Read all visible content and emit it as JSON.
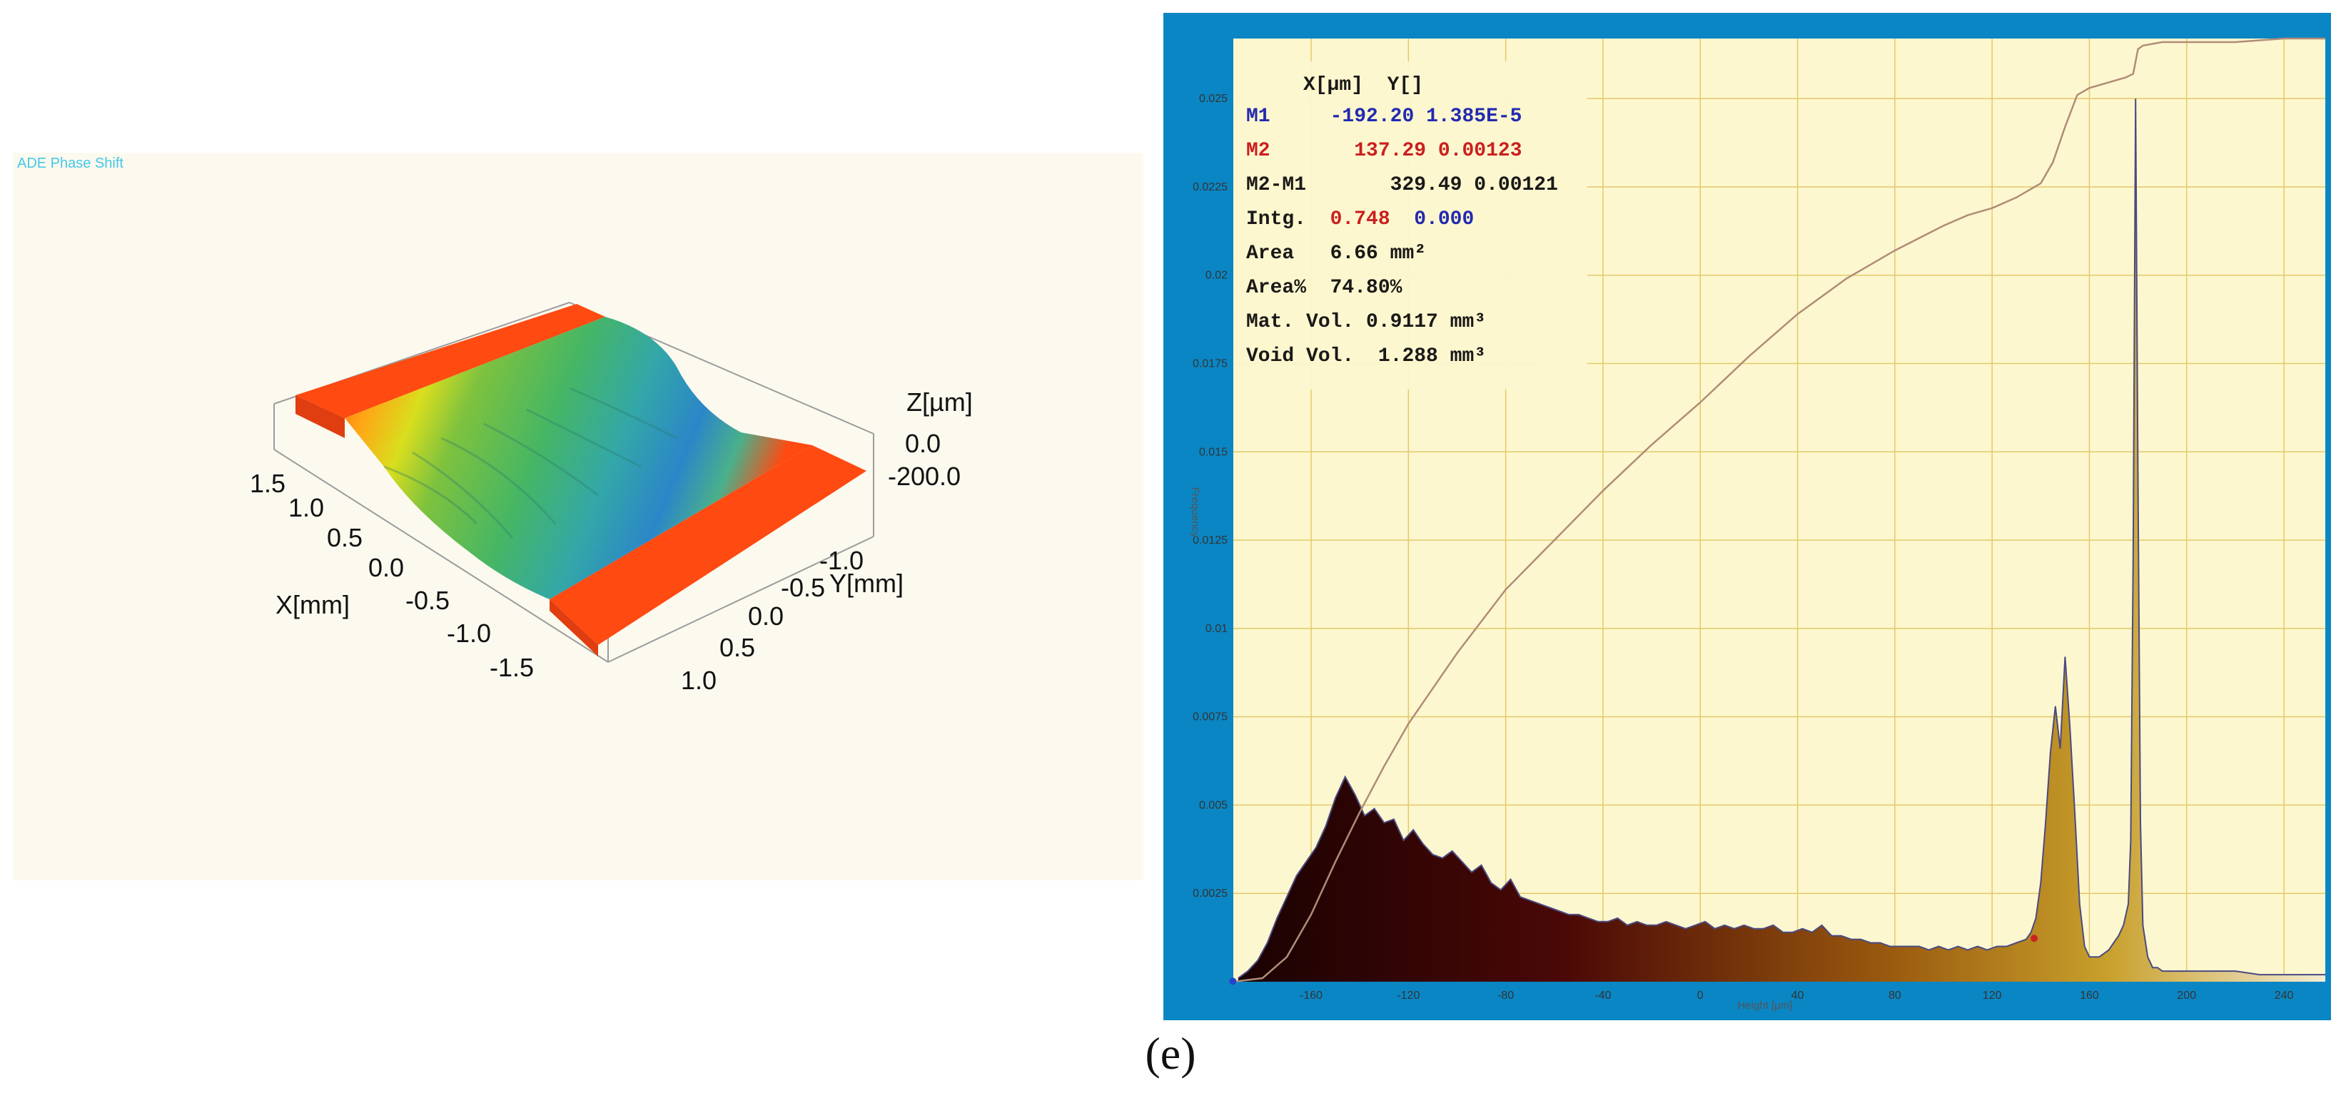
{
  "left_panel": {
    "title": "ADE Phase Shift",
    "axis_z_title": "Z[µm]",
    "axis_z_ticks": [
      "0.0",
      "-200.0"
    ],
    "axis_x_title": "X[mm]",
    "axis_x_ticks": [
      "1.5",
      "1.0",
      "0.5",
      "0.0",
      "-0.5",
      "-1.0",
      "-1.5"
    ],
    "axis_y_title": "Y[mm]",
    "axis_y_ticks": [
      "-1.0",
      "-0.5",
      "0.0",
      "0.5",
      "1.0"
    ],
    "colors": {
      "plateau": "#ff4a12",
      "groove_mid": "#5ab94a",
      "groove_deep": "#2b86c8",
      "background": "#fcf9ef"
    }
  },
  "measurements": {
    "header_x": "X[µm]",
    "header_y": "Y[]",
    "m1": {
      "label": "M1",
      "x": "-192.20",
      "y": "1.385E-5"
    },
    "m2": {
      "label": "M2",
      "x": "137.29",
      "y": "0.00123"
    },
    "m2_m1": {
      "label": "M2-M1",
      "x": "329.49",
      "y": "0.00121"
    },
    "intg": {
      "label": "Intg.",
      "v1": "0.748",
      "v2": "0.000"
    },
    "area": {
      "label": "Area",
      "value": "6.66 mm²"
    },
    "area_pct": {
      "label": "Area%",
      "value": "74.80%"
    },
    "mat_vol": {
      "label": "Mat. Vol.",
      "value": "0.9117 mm³"
    },
    "void_vol": {
      "label": "Void Vol.",
      "value": "1.288 mm³"
    }
  },
  "caption": "(e)",
  "chart_data": {
    "type": "area",
    "xlabel": "Height [µm]",
    "ylabel": "Frequency",
    "xlim": [
      -192,
      257
    ],
    "ylim": [
      0,
      0.0267
    ],
    "x_ticks": [
      -160,
      -120,
      -80,
      -40,
      0,
      40,
      80,
      120,
      160,
      200,
      240
    ],
    "y_ticks": [
      "0.0025",
      "0.005",
      "0.0075",
      "0.01",
      "0.0125",
      "0.015",
      "0.0175",
      "0.02",
      "0.0225",
      "0.025"
    ],
    "grid": true,
    "colors": {
      "plot_bg": "#fdf7cf",
      "frame": "#0a86c4",
      "grid": "#e2c96a",
      "outline": "#4a4a82",
      "cumulative": "#b08c78",
      "marker_m1": "#2244cc",
      "marker_m2": "#cc2222"
    },
    "series": [
      {
        "kind": "histogram",
        "x": [
          -190,
          -186,
          -182,
          -178,
          -174,
          -170,
          -166,
          -162,
          -158,
          -154,
          -150,
          -146,
          -142,
          -138,
          -134,
          -130,
          -126,
          -122,
          -118,
          -114,
          -110,
          -106,
          -102,
          -98,
          -94,
          -90,
          -86,
          -82,
          -78,
          -74,
          -70,
          -66,
          -62,
          -58,
          -54,
          -50,
          -46,
          -42,
          -38,
          -34,
          -30,
          -26,
          -22,
          -18,
          -14,
          -10,
          -6,
          -2,
          2,
          6,
          10,
          14,
          18,
          22,
          26,
          30,
          34,
          38,
          42,
          46,
          50,
          54,
          58,
          62,
          66,
          70,
          74,
          78,
          82,
          86,
          90,
          94,
          98,
          102,
          106,
          110,
          114,
          118,
          122,
          126,
          130,
          134,
          136,
          138,
          140,
          142,
          144,
          146,
          148,
          150,
          152,
          154,
          156,
          158,
          160,
          162,
          164,
          166,
          168,
          170,
          172,
          174,
          176,
          177,
          178,
          179,
          180,
          181,
          182,
          184,
          186,
          188,
          190,
          194,
          200,
          210,
          220,
          230,
          240,
          250,
          257
        ],
        "y": [
          0.0001,
          0.0003,
          0.0006,
          0.0011,
          0.0018,
          0.0024,
          0.003,
          0.0034,
          0.0038,
          0.0044,
          0.0052,
          0.0058,
          0.0053,
          0.0047,
          0.0049,
          0.0045,
          0.0046,
          0.004,
          0.0043,
          0.0039,
          0.0036,
          0.0035,
          0.0037,
          0.0034,
          0.0031,
          0.0033,
          0.0028,
          0.0026,
          0.0029,
          0.0024,
          0.0023,
          0.0022,
          0.0021,
          0.002,
          0.0019,
          0.0019,
          0.0018,
          0.0017,
          0.0017,
          0.0018,
          0.0016,
          0.0017,
          0.0016,
          0.0016,
          0.0017,
          0.0016,
          0.0015,
          0.0016,
          0.0017,
          0.0015,
          0.0016,
          0.0015,
          0.0016,
          0.0015,
          0.0015,
          0.0016,
          0.0014,
          0.0014,
          0.0015,
          0.0014,
          0.0016,
          0.0013,
          0.0013,
          0.0012,
          0.0012,
          0.0011,
          0.0011,
          0.001,
          0.001,
          0.001,
          0.001,
          0.0009,
          0.001,
          0.0009,
          0.001,
          0.0009,
          0.001,
          0.0009,
          0.001,
          0.001,
          0.0011,
          0.0012,
          0.0014,
          0.0018,
          0.0028,
          0.0045,
          0.0065,
          0.0078,
          0.0066,
          0.0092,
          0.0072,
          0.0048,
          0.0022,
          0.001,
          0.0007,
          0.0007,
          0.0007,
          0.0008,
          0.0009,
          0.0011,
          0.0013,
          0.0016,
          0.0022,
          0.004,
          0.012,
          0.025,
          0.014,
          0.0045,
          0.0016,
          0.0007,
          0.0004,
          0.0004,
          0.0003,
          0.0003,
          0.0003,
          0.0003,
          0.0003,
          0.0002,
          0.0002,
          0.0002,
          0.0002
        ]
      },
      {
        "kind": "cumulative",
        "x": [
          -192,
          -180,
          -170,
          -160,
          -150,
          -140,
          -130,
          -120,
          -100,
          -80,
          -60,
          -40,
          -20,
          0,
          20,
          40,
          60,
          80,
          100,
          110,
          120,
          130,
          140,
          145,
          150,
          155,
          160,
          170,
          175,
          178,
          180,
          182,
          190,
          200,
          220,
          240,
          257
        ],
        "y": [
          0,
          0.0001,
          0.0007,
          0.0019,
          0.0034,
          0.0048,
          0.0061,
          0.0073,
          0.0093,
          0.0111,
          0.0125,
          0.0139,
          0.0152,
          0.0164,
          0.0177,
          0.0189,
          0.0199,
          0.0207,
          0.0214,
          0.0217,
          0.0219,
          0.0222,
          0.0226,
          0.0232,
          0.0242,
          0.0251,
          0.0253,
          0.0255,
          0.0256,
          0.0257,
          0.0264,
          0.0265,
          0.0266,
          0.0266,
          0.0266,
          0.0267,
          0.0267
        ]
      }
    ]
  }
}
